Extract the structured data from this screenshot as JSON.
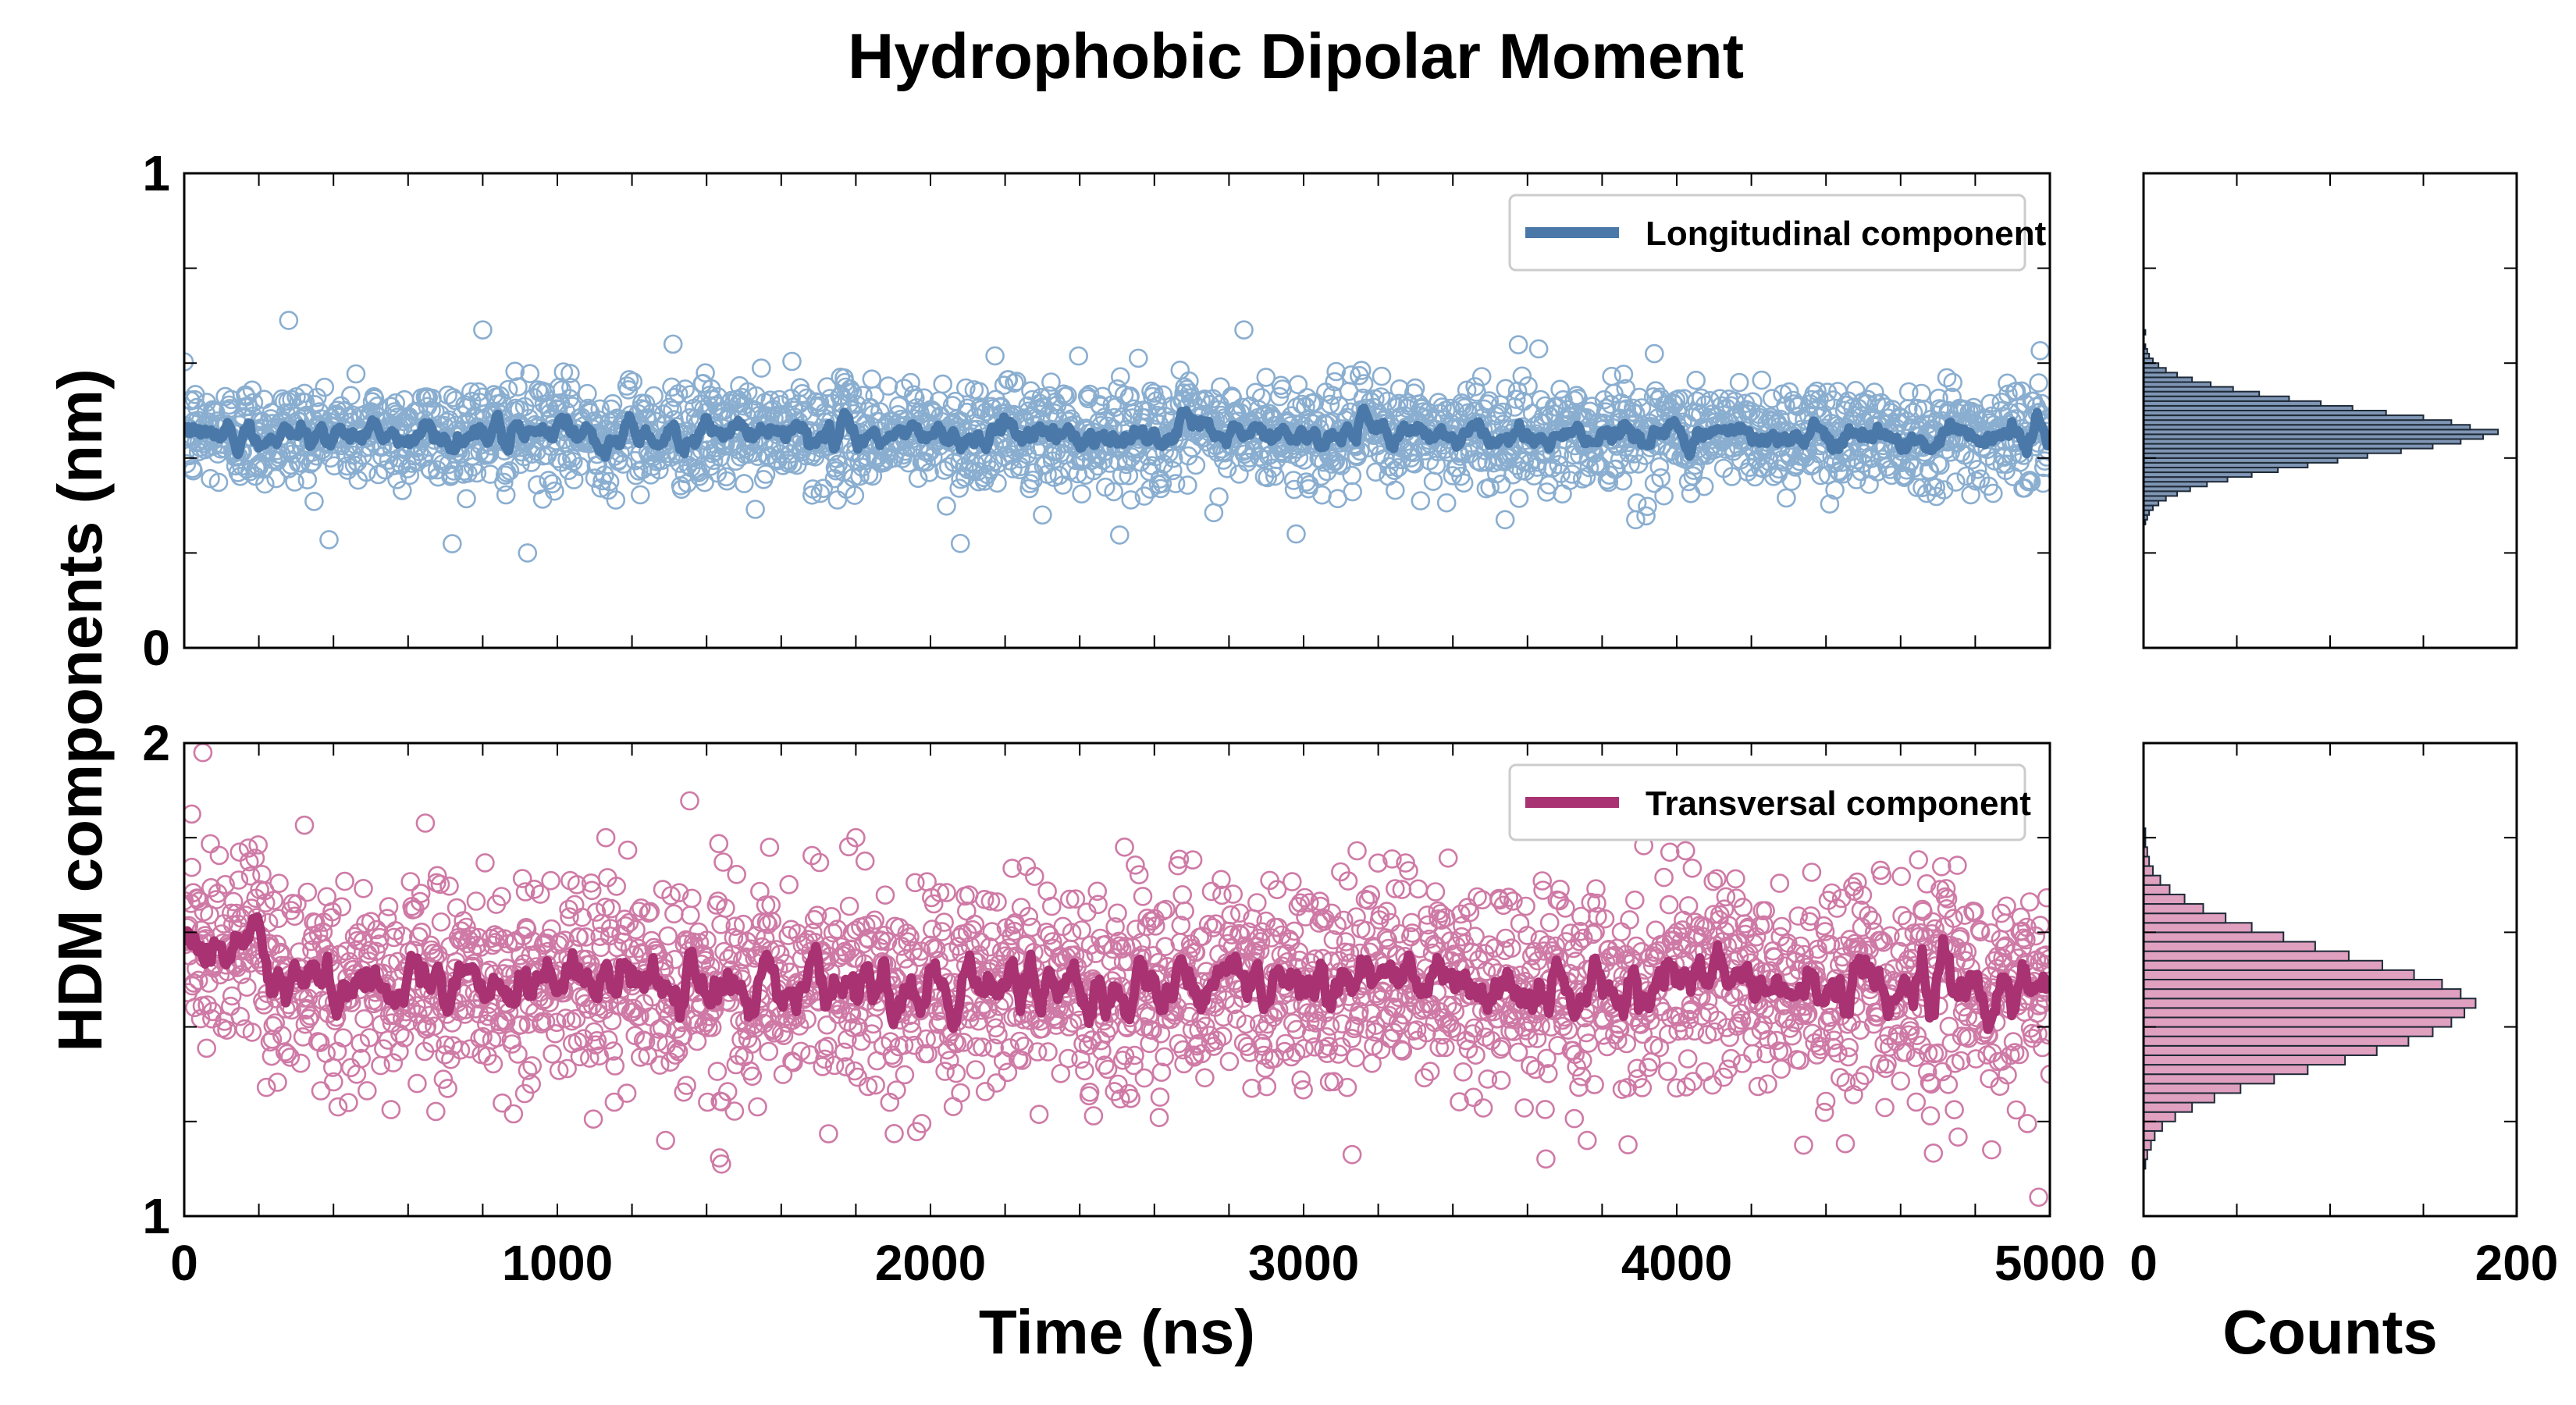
{
  "figure": {
    "title": "Hydrophobic Dipolar Moment",
    "shared_ylabel": "HDM components (nm)"
  },
  "chart_data": [
    {
      "id": "longitudinal_timeseries",
      "type": "scatter",
      "title": "",
      "xlabel": "",
      "ylabel": "HDM components (nm)",
      "xlim": [
        0,
        5000
      ],
      "ylim": [
        0,
        1
      ],
      "yticks_labeled": [
        0,
        1
      ],
      "yticks_minor_step": 0.2,
      "xticks_minor_step": 200,
      "legend": {
        "label": "Longitudinal component",
        "position": "top-right"
      },
      "series": [
        {
          "name": "Longitudinal component (samples)",
          "style": "open-circles",
          "color": "#8aaed0",
          "n_points": 2500,
          "mean": 0.45,
          "std": 0.055,
          "x_range": [
            0,
            5000
          ]
        },
        {
          "name": "Longitudinal component (running mean)",
          "style": "line",
          "color": "#4a78a8",
          "mean": 0.45,
          "std": 0.018
        }
      ],
      "notable_points": [
        {
          "x": 280,
          "y": 0.69
        },
        {
          "x": 800,
          "y": 0.67
        },
        {
          "x": 1310,
          "y": 0.64
        },
        {
          "x": 2840,
          "y": 0.67
        },
        {
          "x": 3630,
          "y": 0.63
        },
        {
          "x": 3940,
          "y": 0.62
        },
        {
          "x": 920,
          "y": 0.2
        },
        {
          "x": 2080,
          "y": 0.22
        },
        {
          "x": 2980,
          "y": 0.24
        },
        {
          "x": 3540,
          "y": 0.27
        },
        {
          "x": 3890,
          "y": 0.27
        },
        {
          "x": 2300,
          "y": 0.28
        }
      ]
    },
    {
      "id": "longitudinal_histogram",
      "type": "bar",
      "orientation": "horizontal",
      "xlabel": "",
      "xlim": [
        0,
        200
      ],
      "ylim": [
        0,
        1
      ],
      "color": "#7f96b4",
      "bin_width": 0.01,
      "bins": [
        {
          "y": 0.26,
          "count": 1
        },
        {
          "y": 0.27,
          "count": 2
        },
        {
          "y": 0.28,
          "count": 3
        },
        {
          "y": 0.29,
          "count": 5
        },
        {
          "y": 0.3,
          "count": 8
        },
        {
          "y": 0.31,
          "count": 12
        },
        {
          "y": 0.32,
          "count": 18
        },
        {
          "y": 0.33,
          "count": 25
        },
        {
          "y": 0.34,
          "count": 34
        },
        {
          "y": 0.35,
          "count": 45
        },
        {
          "y": 0.36,
          "count": 58
        },
        {
          "y": 0.37,
          "count": 72
        },
        {
          "y": 0.38,
          "count": 88
        },
        {
          "y": 0.39,
          "count": 104
        },
        {
          "y": 0.4,
          "count": 120
        },
        {
          "y": 0.41,
          "count": 138
        },
        {
          "y": 0.42,
          "count": 155
        },
        {
          "y": 0.43,
          "count": 170
        },
        {
          "y": 0.44,
          "count": 182
        },
        {
          "y": 0.45,
          "count": 190
        },
        {
          "y": 0.46,
          "count": 175
        },
        {
          "y": 0.47,
          "count": 165
        },
        {
          "y": 0.48,
          "count": 150
        },
        {
          "y": 0.49,
          "count": 130
        },
        {
          "y": 0.5,
          "count": 112
        },
        {
          "y": 0.51,
          "count": 95
        },
        {
          "y": 0.52,
          "count": 78
        },
        {
          "y": 0.53,
          "count": 62
        },
        {
          "y": 0.54,
          "count": 48
        },
        {
          "y": 0.55,
          "count": 36
        },
        {
          "y": 0.56,
          "count": 26
        },
        {
          "y": 0.57,
          "count": 18
        },
        {
          "y": 0.58,
          "count": 12
        },
        {
          "y": 0.59,
          "count": 8
        },
        {
          "y": 0.6,
          "count": 5
        },
        {
          "y": 0.61,
          "count": 3
        },
        {
          "y": 0.62,
          "count": 2
        },
        {
          "y": 0.63,
          "count": 1
        },
        {
          "y": 0.66,
          "count": 1
        }
      ]
    },
    {
      "id": "transversal_timeseries",
      "type": "scatter",
      "title": "",
      "xlabel": "Time (ns)",
      "ylabel": "HDM components (nm)",
      "xlim": [
        0,
        5000
      ],
      "ylim": [
        1,
        2
      ],
      "xticks_labeled": [
        0,
        1000,
        2000,
        3000,
        4000,
        5000
      ],
      "yticks_labeled": [
        1,
        2
      ],
      "yticks_minor_step": 0.2,
      "xticks_minor_step": 200,
      "legend": {
        "label": "Transversal component",
        "position": "top-right"
      },
      "series": [
        {
          "name": "Transversal component (samples)",
          "style": "open-circles",
          "color": "#cf7aa6",
          "n_points": 2500,
          "mean": 1.49,
          "std": 0.11,
          "x_range": [
            0,
            5000
          ]
        },
        {
          "name": "Transversal component (running mean)",
          "style": "line",
          "color": "#a83272",
          "mean": 1.49,
          "std": 0.04,
          "initial_value": 1.6
        }
      ],
      "notable_points": [
        {
          "x": 50,
          "y": 1.98
        },
        {
          "x": 20,
          "y": 1.85
        },
        {
          "x": 1130,
          "y": 1.8
        },
        {
          "x": 1800,
          "y": 1.8
        },
        {
          "x": 2520,
          "y": 1.78
        },
        {
          "x": 4640,
          "y": 1.83
        },
        {
          "x": 4970,
          "y": 1.04
        },
        {
          "x": 1440,
          "y": 1.11
        },
        {
          "x": 3130,
          "y": 1.13
        },
        {
          "x": 4340,
          "y": 1.15
        },
        {
          "x": 1290,
          "y": 1.16
        },
        {
          "x": 3760,
          "y": 1.16
        }
      ]
    },
    {
      "id": "transversal_histogram",
      "type": "bar",
      "orientation": "horizontal",
      "xlabel": "Counts",
      "xlim": [
        0,
        200
      ],
      "ylim": [
        1,
        2
      ],
      "xticks_labeled": [
        0,
        200
      ],
      "color": "#e0a0bf",
      "bin_width": 0.02,
      "bins": [
        {
          "y": 1.1,
          "count": 1
        },
        {
          "y": 1.12,
          "count": 2
        },
        {
          "y": 1.14,
          "count": 4
        },
        {
          "y": 1.16,
          "count": 6
        },
        {
          "y": 1.18,
          "count": 10
        },
        {
          "y": 1.2,
          "count": 17
        },
        {
          "y": 1.22,
          "count": 26
        },
        {
          "y": 1.24,
          "count": 38
        },
        {
          "y": 1.26,
          "count": 52
        },
        {
          "y": 1.28,
          "count": 70
        },
        {
          "y": 1.3,
          "count": 88
        },
        {
          "y": 1.32,
          "count": 108
        },
        {
          "y": 1.34,
          "count": 125
        },
        {
          "y": 1.36,
          "count": 142
        },
        {
          "y": 1.38,
          "count": 155
        },
        {
          "y": 1.4,
          "count": 165
        },
        {
          "y": 1.42,
          "count": 172
        },
        {
          "y": 1.44,
          "count": 178
        },
        {
          "y": 1.46,
          "count": 170
        },
        {
          "y": 1.48,
          "count": 160
        },
        {
          "y": 1.5,
          "count": 145
        },
        {
          "y": 1.52,
          "count": 128
        },
        {
          "y": 1.54,
          "count": 110
        },
        {
          "y": 1.56,
          "count": 92
        },
        {
          "y": 1.58,
          "count": 75
        },
        {
          "y": 1.6,
          "count": 58
        },
        {
          "y": 1.62,
          "count": 44
        },
        {
          "y": 1.64,
          "count": 32
        },
        {
          "y": 1.66,
          "count": 22
        },
        {
          "y": 1.68,
          "count": 14
        },
        {
          "y": 1.7,
          "count": 9
        },
        {
          "y": 1.72,
          "count": 5
        },
        {
          "y": 1.74,
          "count": 3
        },
        {
          "y": 1.76,
          "count": 2
        },
        {
          "y": 1.78,
          "count": 1
        },
        {
          "y": 1.8,
          "count": 1
        }
      ]
    }
  ]
}
